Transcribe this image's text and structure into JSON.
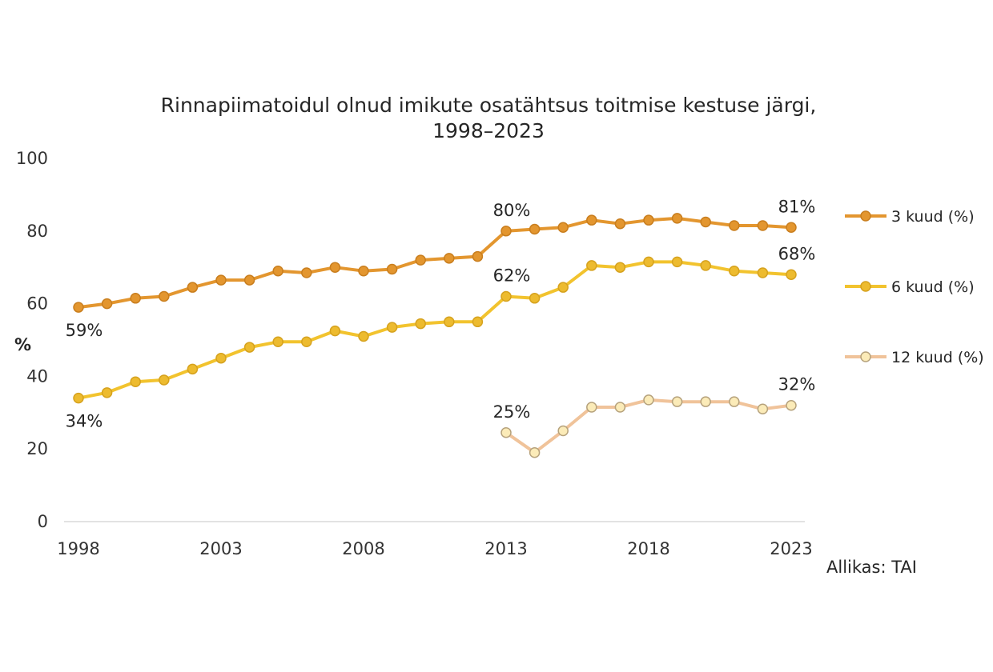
{
  "chart_data": {
    "type": "line",
    "title_lines": [
      "Rinnapiimatoidul olnud imikute osatähtsus toitmise kestuse järgi,",
      "1998–2023"
    ],
    "ylabel": "%",
    "ylim": [
      0,
      100
    ],
    "yticks": [
      0,
      20,
      40,
      60,
      80,
      100
    ],
    "xlim": [
      1998,
      2023
    ],
    "xticks": [
      1998,
      2003,
      2008,
      2013,
      2018,
      2023
    ],
    "grid": false,
    "legend_position": "right",
    "source": "Allikas: TAI",
    "series": [
      {
        "name": "3 kuud (%)",
        "color": "#E3962F",
        "marker_fill": "#E3962F",
        "marker_stroke": "#C97E1E",
        "x": [
          1998,
          1999,
          2000,
          2001,
          2002,
          2003,
          2004,
          2005,
          2006,
          2007,
          2008,
          2009,
          2010,
          2011,
          2012,
          2013,
          2014,
          2015,
          2016,
          2017,
          2018,
          2019,
          2020,
          2021,
          2022,
          2023
        ],
        "values": [
          59,
          60,
          61.5,
          62,
          64.5,
          66.5,
          66.5,
          69,
          68.5,
          70,
          69,
          69.5,
          72,
          72.5,
          73,
          80,
          80.5,
          81,
          83,
          82,
          83,
          83.5,
          82.5,
          81.5,
          81.5,
          81
        ],
        "labels": [
          {
            "x": 1998,
            "text": "59%",
            "pos": "below"
          },
          {
            "x": 2013,
            "text": "80%",
            "pos": "above"
          },
          {
            "x": 2023,
            "text": "81%",
            "pos": "above"
          }
        ]
      },
      {
        "name": "6 kuud (%)",
        "color": "#F2C32E",
        "marker_fill": "#EDBB2F",
        "marker_stroke": "#D6A21E",
        "x": [
          1998,
          1999,
          2000,
          2001,
          2002,
          2003,
          2004,
          2005,
          2006,
          2007,
          2008,
          2009,
          2010,
          2011,
          2012,
          2013,
          2014,
          2015,
          2016,
          2017,
          2018,
          2019,
          2020,
          2021,
          2022,
          2023
        ],
        "values": [
          34,
          35.5,
          38.5,
          39,
          42,
          45,
          48,
          49.5,
          49.5,
          52.5,
          51,
          53.5,
          54.5,
          55,
          55,
          62,
          61.5,
          64.5,
          70.5,
          70,
          71.5,
          71.5,
          70.5,
          69,
          68.5,
          68
        ],
        "labels": [
          {
            "x": 1998,
            "text": "34%",
            "pos": "below"
          },
          {
            "x": 2013,
            "text": "62%",
            "pos": "above"
          },
          {
            "x": 2023,
            "text": "68%",
            "pos": "above"
          }
        ]
      },
      {
        "name": "12 kuud (%)",
        "color": "#F0C39A",
        "marker_fill": "#FBEBB8",
        "marker_stroke": "#B6A27C",
        "x": [
          2013,
          2014,
          2015,
          2016,
          2017,
          2018,
          2019,
          2020,
          2021,
          2022,
          2023
        ],
        "values": [
          24.5,
          19,
          25,
          31.5,
          31.5,
          33.5,
          33,
          33,
          33,
          31,
          32
        ],
        "labels": [
          {
            "x": 2013,
            "text": "25%",
            "pos": "above"
          },
          {
            "x": 2023,
            "text": "32%",
            "pos": "above"
          }
        ]
      }
    ]
  }
}
